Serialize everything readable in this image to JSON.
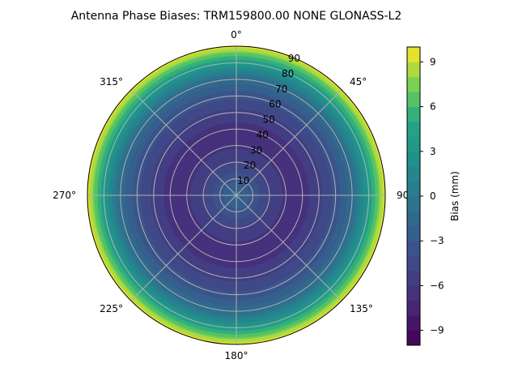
{
  "chart_data": {
    "type": "heatmap",
    "projection": "polar",
    "title": "Antenna Phase Biases: TRM159800.00    NONE GLONASS-L2",
    "radial_axis": {
      "range": [
        0,
        90
      ],
      "ticks": [
        "10",
        "20",
        "30",
        "40",
        "50",
        "60",
        "70",
        "80",
        "90"
      ],
      "label_direction": "north-northeast"
    },
    "angular_axis": {
      "zero_location": "top",
      "direction": "clockwise",
      "ticks": [
        {
          "deg": 0,
          "label": "0°"
        },
        {
          "deg": 45,
          "label": "45°"
        },
        {
          "deg": 90,
          "label": "90°"
        },
        {
          "deg": 135,
          "label": "135°"
        },
        {
          "deg": 180,
          "label": "180°"
        },
        {
          "deg": 225,
          "label": "225°"
        },
        {
          "deg": 270,
          "label": "270°"
        },
        {
          "deg": 315,
          "label": "315°"
        }
      ]
    },
    "grid": true,
    "colormap": "viridis",
    "colorbar": {
      "label": "Bias (mm)",
      "range": [
        -10,
        10
      ],
      "levels": 20,
      "ticks": [
        "−9",
        "−6",
        "−3",
        "0",
        "3",
        "6",
        "9"
      ],
      "tick_values": [
        -9,
        -6,
        -3,
        0,
        3,
        6,
        9
      ]
    },
    "bias_profile": {
      "x_zenith_deg": [
        0,
        10,
        20,
        30,
        40,
        50,
        60,
        70,
        80,
        90
      ],
      "y_bias_mm": [
        -1.5,
        -3.4,
        -5.1,
        -6.2,
        -6.5,
        -5.3,
        -3.6,
        -1.4,
        3.6,
        9.5
      ]
    }
  }
}
